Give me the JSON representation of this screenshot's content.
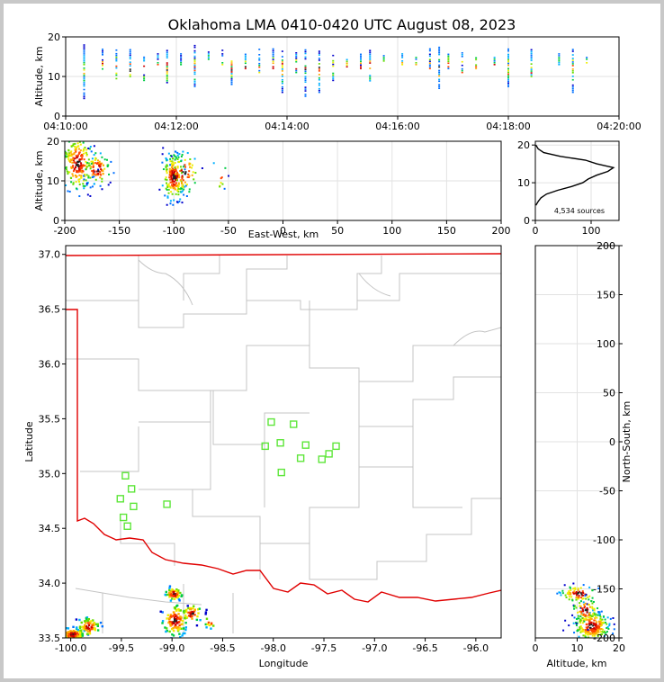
{
  "chart_data": [
    {
      "id": "time-altitude",
      "type": "scatter",
      "title": "Oklahoma LMA 0410-0420 UTC August 08, 2023",
      "ylabel": "Altitude, km",
      "xlim": [
        "04:10:00",
        "04:20:00"
      ],
      "ylim": [
        0,
        20
      ],
      "xticks": [
        "04:10:00",
        "04:12:00",
        "04:14:00",
        "04:16:00",
        "04:18:00",
        "04:20:00"
      ],
      "yticks": [
        0,
        10,
        20
      ],
      "grid": true,
      "columns": [
        {
          "t": "04:10:20",
          "lo": 4,
          "hi": 18
        },
        {
          "t": "04:10:40",
          "lo": 11,
          "hi": 17
        },
        {
          "t": "04:10:55",
          "lo": 9,
          "hi": 17
        },
        {
          "t": "04:11:10",
          "lo": 10,
          "hi": 17
        },
        {
          "t": "04:11:25",
          "lo": 9,
          "hi": 16
        },
        {
          "t": "04:11:40",
          "lo": 13,
          "hi": 16
        },
        {
          "t": "04:11:50",
          "lo": 8,
          "hi": 17
        },
        {
          "t": "04:12:05",
          "lo": 13,
          "hi": 16
        },
        {
          "t": "04:12:20",
          "lo": 7,
          "hi": 18
        },
        {
          "t": "04:12:35",
          "lo": 13,
          "hi": 17
        },
        {
          "t": "04:12:50",
          "lo": 13,
          "hi": 17
        },
        {
          "t": "04:13:00",
          "lo": 8,
          "hi": 16
        },
        {
          "t": "04:13:15",
          "lo": 12,
          "hi": 16
        },
        {
          "t": "04:13:30",
          "lo": 11,
          "hi": 17
        },
        {
          "t": "04:13:45",
          "lo": 12,
          "hi": 17
        },
        {
          "t": "04:13:55",
          "lo": 6,
          "hi": 17
        },
        {
          "t": "04:14:10",
          "lo": 11,
          "hi": 16
        },
        {
          "t": "04:14:20",
          "lo": 5,
          "hi": 17
        },
        {
          "t": "04:14:35",
          "lo": 6,
          "hi": 17
        },
        {
          "t": "04:14:50",
          "lo": 9,
          "hi": 16
        },
        {
          "t": "04:15:05",
          "lo": 12,
          "hi": 15
        },
        {
          "t": "04:15:20",
          "lo": 12,
          "hi": 16
        },
        {
          "t": "04:15:30",
          "lo": 8,
          "hi": 17
        },
        {
          "t": "04:15:45",
          "lo": 13,
          "hi": 16
        },
        {
          "t": "04:16:05",
          "lo": 13,
          "hi": 16
        },
        {
          "t": "04:16:20",
          "lo": 13,
          "hi": 17
        },
        {
          "t": "04:16:35",
          "lo": 12,
          "hi": 17
        },
        {
          "t": "04:16:45",
          "lo": 7,
          "hi": 18
        },
        {
          "t": "04:16:55",
          "lo": 12,
          "hi": 16
        },
        {
          "t": "04:17:10",
          "lo": 11,
          "hi": 16
        },
        {
          "t": "04:17:25",
          "lo": 12,
          "hi": 15
        },
        {
          "t": "04:17:45",
          "lo": 13,
          "hi": 15
        },
        {
          "t": "04:18:00",
          "lo": 7,
          "hi": 17
        },
        {
          "t": "04:18:25",
          "lo": 10,
          "hi": 17
        },
        {
          "t": "04:18:55",
          "lo": 13,
          "hi": 16
        },
        {
          "t": "04:19:10",
          "lo": 6,
          "hi": 17
        },
        {
          "t": "04:19:25",
          "lo": 13,
          "hi": 16
        }
      ]
    },
    {
      "id": "ew-altitude",
      "type": "scatter",
      "xlabel": "East-West, km",
      "ylabel": "Altitude, km",
      "xlim": [
        -200,
        200
      ],
      "ylim": [
        0,
        20
      ],
      "xticks": [
        -200,
        -150,
        -100,
        -50,
        0,
        50,
        100,
        150,
        200
      ],
      "yticks": [
        0,
        10,
        20
      ],
      "grid": true,
      "clusters": [
        {
          "x": -188,
          "y": 14.5,
          "sx": 7,
          "sy": 3.5,
          "n": 230
        },
        {
          "x": -170,
          "y": 13,
          "sx": 6,
          "sy": 2,
          "n": 90
        },
        {
          "x": -100,
          "y": 11,
          "sx": 5,
          "sy": 3,
          "n": 200
        },
        {
          "x": -90,
          "y": 12,
          "sx": 6,
          "sy": 2.5,
          "n": 60
        },
        {
          "x": -58,
          "y": 11.5,
          "sx": 3,
          "sy": 2,
          "n": 10
        }
      ]
    },
    {
      "id": "altitude-histogram",
      "type": "line",
      "xlim": [
        0,
        150
      ],
      "ylim": [
        0,
        21
      ],
      "xticks": [
        0,
        100
      ],
      "yticks": [
        0,
        10,
        20
      ],
      "grid": true,
      "annotation": "4,534 sources",
      "profile": [
        {
          "alt": 4,
          "count": 1
        },
        {
          "alt": 5,
          "count": 5
        },
        {
          "alt": 6,
          "count": 10
        },
        {
          "alt": 7,
          "count": 20
        },
        {
          "alt": 8,
          "count": 40
        },
        {
          "alt": 9,
          "count": 65
        },
        {
          "alt": 10,
          "count": 85
        },
        {
          "alt": 11,
          "count": 95
        },
        {
          "alt": 12,
          "count": 110
        },
        {
          "alt": 13,
          "count": 130
        },
        {
          "alt": 14,
          "count": 140
        },
        {
          "alt": 15,
          "count": 110
        },
        {
          "alt": 16,
          "count": 90
        },
        {
          "alt": 17,
          "count": 45
        },
        {
          "alt": 18,
          "count": 15
        },
        {
          "alt": 19,
          "count": 5
        },
        {
          "alt": 20,
          "count": 1
        }
      ]
    },
    {
      "id": "plan-view",
      "type": "scatter",
      "xlabel": "Longitude",
      "ylabel": "Latitude",
      "xlim": [
        -100.05,
        -95.75
      ],
      "ylim": [
        33.5,
        37.08
      ],
      "xticks": [
        -100.0,
        -99.5,
        -99.0,
        -98.5,
        -98.0,
        -97.5,
        -97.0,
        -96.5,
        -96.0
      ],
      "yticks": [
        33.5,
        34.0,
        34.5,
        35.0,
        35.5,
        36.0,
        36.5,
        37.0
      ],
      "grid": false,
      "stations": [
        {
          "lon": -98.02,
          "lat": 35.47
        },
        {
          "lon": -97.8,
          "lat": 35.45
        },
        {
          "lon": -98.08,
          "lat": 35.25
        },
        {
          "lon": -97.93,
          "lat": 35.28
        },
        {
          "lon": -97.68,
          "lat": 35.26
        },
        {
          "lon": -97.38,
          "lat": 35.25
        },
        {
          "lon": -97.45,
          "lat": 35.18
        },
        {
          "lon": -97.73,
          "lat": 35.14
        },
        {
          "lon": -97.52,
          "lat": 35.13
        },
        {
          "lon": -97.92,
          "lat": 35.01
        },
        {
          "lon": -99.46,
          "lat": 34.98
        },
        {
          "lon": -99.4,
          "lat": 34.86
        },
        {
          "lon": -99.51,
          "lat": 34.77
        },
        {
          "lon": -99.05,
          "lat": 34.72
        },
        {
          "lon": -99.38,
          "lat": 34.7
        },
        {
          "lon": -99.48,
          "lat": 34.6
        },
        {
          "lon": -99.44,
          "lat": 34.52
        }
      ],
      "clusters": [
        {
          "lon": -99.98,
          "lat": 33.53,
          "slon": 0.06,
          "slat": 0.03,
          "n": 120
        },
        {
          "lon": -99.82,
          "lat": 33.6,
          "slon": 0.05,
          "slat": 0.04,
          "n": 70
        },
        {
          "lon": -98.98,
          "lat": 33.9,
          "slon": 0.04,
          "slat": 0.03,
          "n": 60
        },
        {
          "lon": -98.97,
          "lat": 33.66,
          "slon": 0.06,
          "slat": 0.07,
          "n": 110
        },
        {
          "lon": -98.8,
          "lat": 33.72,
          "slon": 0.05,
          "slat": 0.04,
          "n": 40
        },
        {
          "lon": -98.62,
          "lat": 33.65,
          "slon": 0.03,
          "slat": 0.03,
          "n": 10
        }
      ]
    },
    {
      "id": "ns-altitude",
      "type": "scatter",
      "xlabel": "Altitude, km",
      "ylabel": "North-South, km",
      "xlim": [
        0,
        20
      ],
      "ylim": [
        -200,
        200
      ],
      "xticks": [
        0,
        10,
        20
      ],
      "yticks": [
        -200,
        -150,
        -100,
        -50,
        0,
        50,
        100,
        150,
        200
      ],
      "grid": true,
      "clusters": [
        {
          "x": 10.5,
          "y": -155,
          "sx": 2.2,
          "sy": 4,
          "n": 80
        },
        {
          "x": 13.5,
          "y": -188,
          "sx": 2,
          "sy": 7,
          "n": 260
        },
        {
          "x": 12,
          "y": -172,
          "sx": 1.5,
          "sy": 6,
          "n": 60
        }
      ]
    }
  ]
}
